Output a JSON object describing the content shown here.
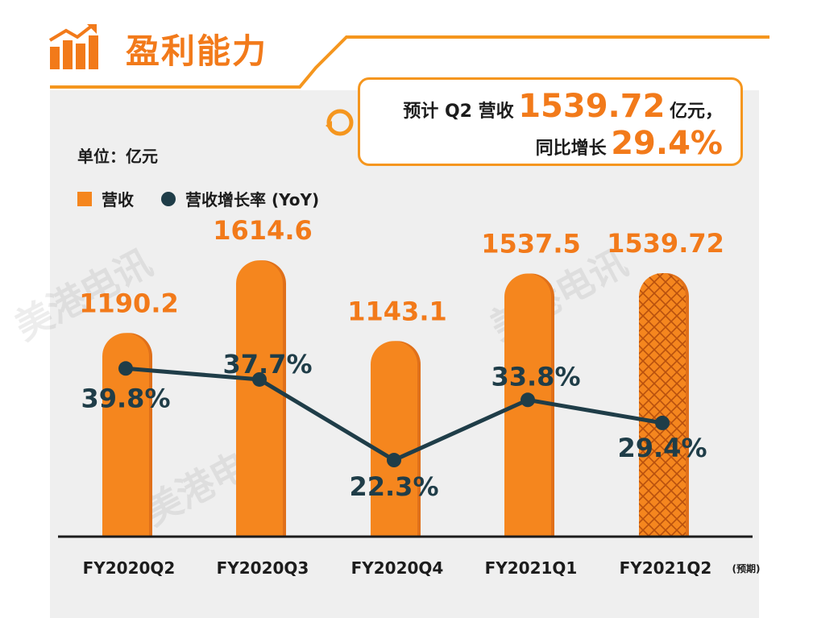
{
  "header": {
    "title": "盈利能力"
  },
  "callout": {
    "line1_prefix": "预计 Q2 营收",
    "line1_value": "1539.72",
    "line1_suffix": "亿元，",
    "line2_prefix": "同比增长",
    "line2_value": "29.4%"
  },
  "unit_label": "单位：亿元",
  "legend": {
    "bar": "营收",
    "line": "营收增长率 (YoY)"
  },
  "watermark": "美港电讯",
  "colors": {
    "accent": "#f27a1a",
    "bar": "#f5861e",
    "bar_side": "#e0701a",
    "line": "#1f3d48",
    "panel": "#efefef"
  },
  "chart_data": {
    "type": "bar",
    "categories": [
      "FY2020Q2",
      "FY2020Q3",
      "FY2020Q4",
      "FY2021Q1",
      "FY2021Q2"
    ],
    "category_note": "(预期)",
    "series": [
      {
        "name": "营收",
        "type": "bar",
        "values": [
          1190.2,
          1614.6,
          1143.1,
          1537.5,
          1539.72
        ],
        "labels": [
          "1190.2",
          "1614.6",
          "1143.1",
          "1537.5",
          "1539.72"
        ],
        "forecast": [
          false,
          false,
          false,
          false,
          true
        ]
      },
      {
        "name": "营收增长率 (YoY)",
        "type": "line",
        "values": [
          39.8,
          37.7,
          22.3,
          33.8,
          29.4
        ],
        "labels": [
          "39.8%",
          "37.7%",
          "22.3%",
          "33.8%",
          "29.4%"
        ]
      }
    ],
    "bar_ylim": [
      0,
      1700
    ],
    "line_ylim": [
      0,
      50
    ]
  }
}
